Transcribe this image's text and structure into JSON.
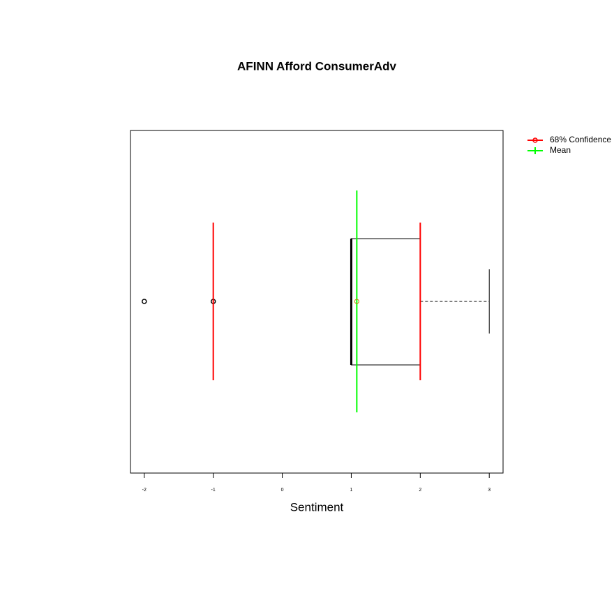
{
  "chart_data": {
    "type": "boxplot",
    "title": "AFINN Afford ConsumerAdv",
    "xlabel": "Sentiment",
    "xlim": [
      -2.2,
      3.2
    ],
    "xticks": [
      -2,
      -1,
      0,
      1,
      2,
      3
    ],
    "box": {
      "whisker_low": 1,
      "q1": 1,
      "median": 1,
      "q3": 2,
      "whisker_high": 3
    },
    "outliers": [
      -2,
      -1
    ],
    "series": [
      {
        "name": "68% Confidence",
        "color": "#ff0000",
        "values": [
          -1,
          2
        ]
      },
      {
        "name": "Mean",
        "color": "#00ff00",
        "values": [
          1.08
        ]
      }
    ],
    "mean_point_color": "#c08000",
    "legend": "outside-top-right"
  }
}
